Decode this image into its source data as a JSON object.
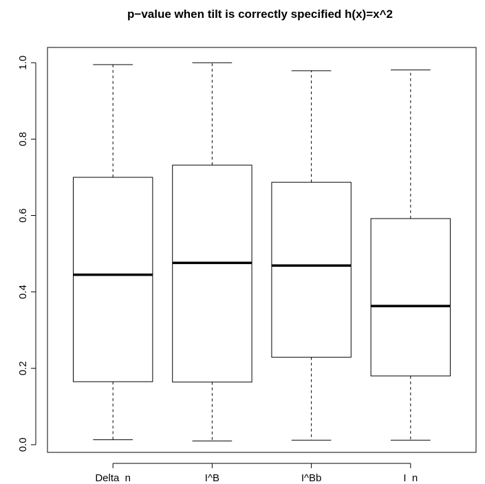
{
  "chart_data": {
    "type": "boxplot",
    "title": "p−value when tilt is correctly specified h(x)=x^2",
    "xlabel": "",
    "ylabel": "",
    "ylim": [
      -0.02,
      1.04
    ],
    "yticks": [
      0.0,
      0.2,
      0.4,
      0.6,
      0.8,
      1.0
    ],
    "ytick_labels": [
      "0.0",
      "0.2",
      "0.4",
      "0.6",
      "0.8",
      "1.0"
    ],
    "categories": [
      "Delta  n",
      "I^B",
      "I^Bb",
      "I  n"
    ],
    "boxes": [
      {
        "whisker_low": 0.013,
        "q1": 0.165,
        "median": 0.445,
        "q3": 0.7,
        "whisker_high": 0.995
      },
      {
        "whisker_low": 0.01,
        "q1": 0.164,
        "median": 0.476,
        "q3": 0.732,
        "whisker_high": 1.0
      },
      {
        "whisker_low": 0.012,
        "q1": 0.229,
        "median": 0.469,
        "q3": 0.687,
        "whisker_high": 0.979
      },
      {
        "whisker_low": 0.012,
        "q1": 0.18,
        "median": 0.363,
        "q3": 0.592,
        "whisker_high": 0.981
      }
    ],
    "grid": false
  }
}
